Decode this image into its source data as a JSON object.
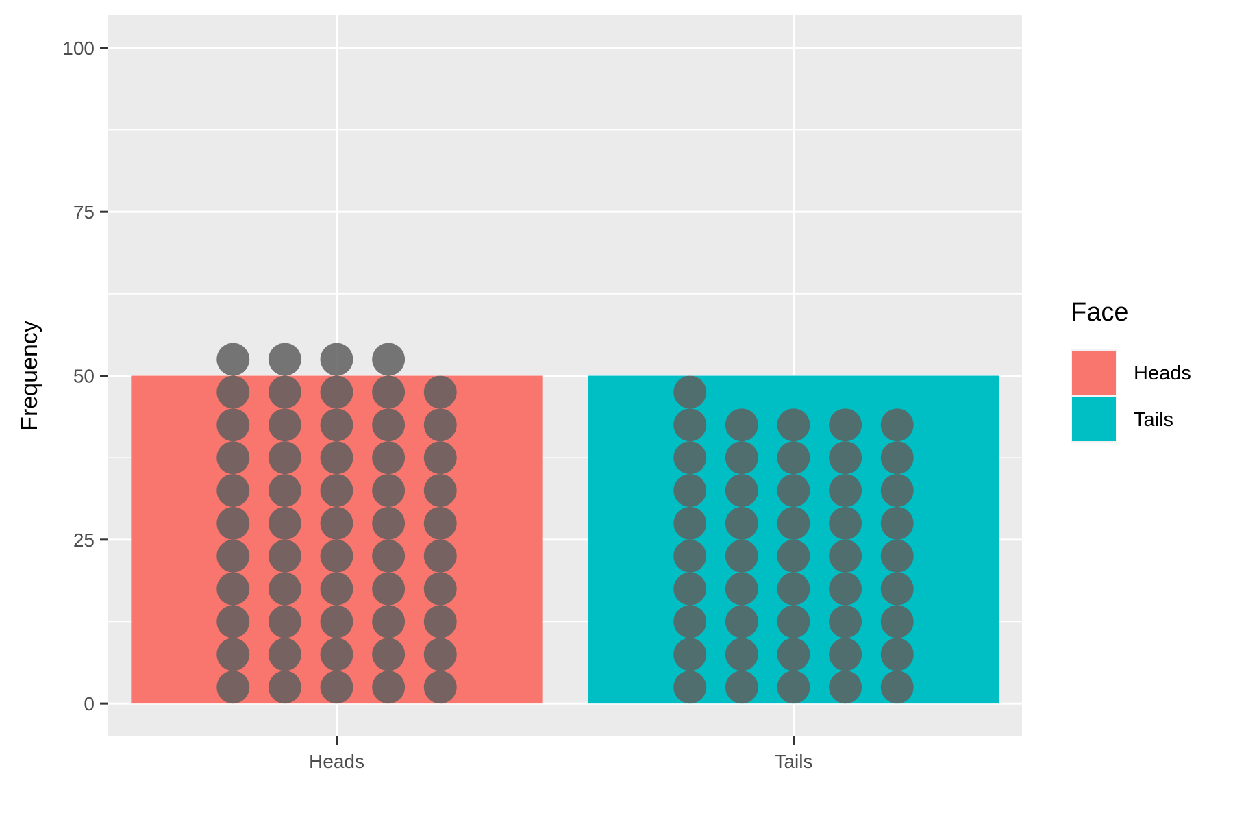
{
  "chart_data": {
    "type": "bar",
    "categories": [
      "Heads",
      "Tails"
    ],
    "values": [
      50,
      50
    ],
    "xlabel": "",
    "ylabel": "Frequency",
    "ylim": [
      -5,
      105
    ],
    "yticks": [
      0,
      25,
      50,
      75,
      100
    ],
    "grid": true,
    "dots_overlay": {
      "description_counts": "dotplot overlay of individual observations",
      "Heads": 54,
      "Tails": 46
    },
    "legend": {
      "title": "Face",
      "position": "right",
      "entries": [
        {
          "label": "Heads",
          "color": "#F8766D"
        },
        {
          "label": "Tails",
          "color": "#00BFC4"
        }
      ]
    },
    "colors": {
      "panel": "#EBEBEB",
      "grid": "#FFFFFF",
      "dot": "#5F5F5F"
    }
  }
}
